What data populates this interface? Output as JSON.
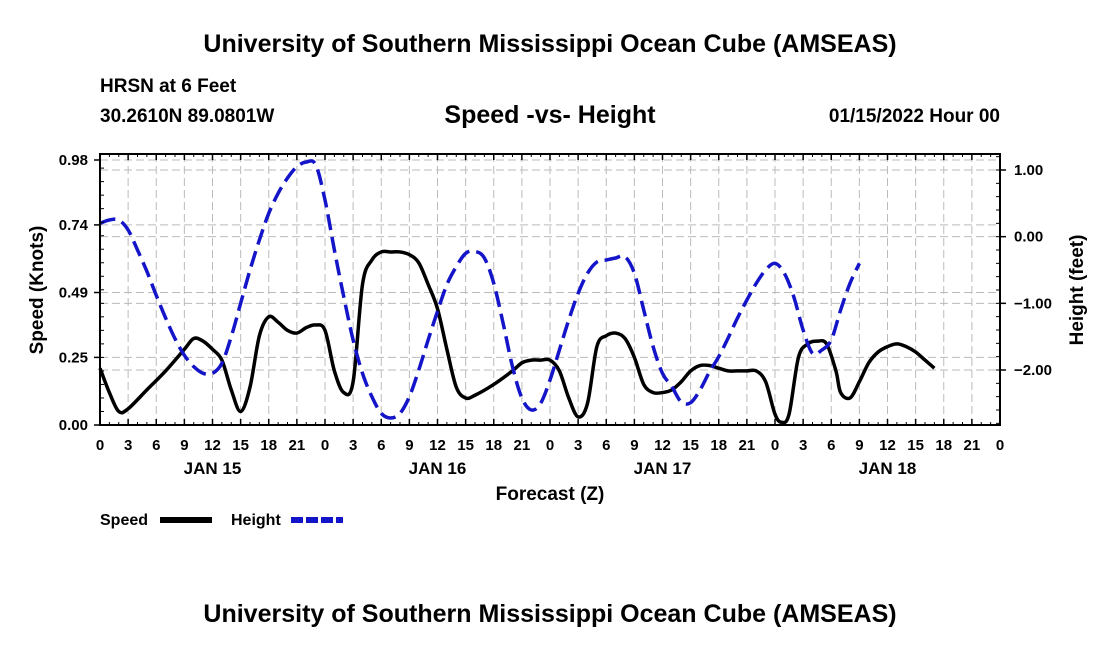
{
  "header": {
    "title": "University of Southern Mississippi Ocean Cube (AMSEAS)",
    "station_name": "HRSN at 6 Feet",
    "station_coords": "30.2610N  89.0801W",
    "subtitle": "Speed -vs- Height",
    "run_time": "01/15/2022 Hour 00"
  },
  "footer": {
    "title": "University of Southern Mississippi Ocean Cube (AMSEAS)"
  },
  "chart_data": {
    "type": "line",
    "title": "Speed -vs- Height",
    "xlabel": "Forecast (Z)",
    "ylabel": "Speed (Knots)",
    "y2label": "Height (feet)",
    "xlim": [
      0,
      96
    ],
    "ylim": [
      0,
      0.98
    ],
    "y2lim": [
      -2.8,
      1.2
    ],
    "x_ticks": [
      0,
      3,
      6,
      9,
      12,
      15,
      18,
      21,
      24,
      27,
      30,
      33,
      36,
      39,
      42,
      45,
      48,
      51,
      54,
      57,
      60,
      63,
      66,
      69,
      72,
      75,
      78,
      81,
      84,
      87,
      90,
      93,
      96
    ],
    "x_tick_labels": [
      "0",
      "3",
      "6",
      "9",
      "12",
      "15",
      "18",
      "21",
      "0",
      "3",
      "6",
      "9",
      "12",
      "15",
      "18",
      "21",
      "0",
      "3",
      "6",
      "9",
      "12",
      "15",
      "18",
      "21",
      "0",
      "3",
      "6",
      "9",
      "12",
      "15",
      "18",
      "21",
      "0"
    ],
    "day_labels": [
      {
        "x": 12,
        "label": "JAN 15"
      },
      {
        "x": 36,
        "label": "JAN 16"
      },
      {
        "x": 60,
        "label": "JAN 17"
      },
      {
        "x": 84,
        "label": "JAN 18"
      }
    ],
    "y_ticks": [
      0.0,
      0.25,
      0.49,
      0.74,
      0.98
    ],
    "y_tick_labels": [
      "0.00",
      "0.25",
      "0.49",
      "0.74",
      "0.98"
    ],
    "y2_ticks": [
      1.0,
      0.0,
      -1.0,
      -2.0
    ],
    "y2_tick_labels": [
      "1.00",
      "0.00",
      "−1.00",
      "−2.00"
    ],
    "grid": true,
    "series": [
      {
        "name": "Speed",
        "axis": "left",
        "color": "#000000",
        "dash": "solid",
        "points": [
          [
            0,
            0.21
          ],
          [
            1,
            0.12
          ],
          [
            2,
            0.05
          ],
          [
            3,
            0.06
          ],
          [
            5,
            0.13
          ],
          [
            7,
            0.2
          ],
          [
            9,
            0.28
          ],
          [
            10,
            0.32
          ],
          [
            11,
            0.31
          ],
          [
            12,
            0.28
          ],
          [
            13,
            0.24
          ],
          [
            14,
            0.13
          ],
          [
            15,
            0.05
          ],
          [
            16,
            0.14
          ],
          [
            17,
            0.33
          ],
          [
            18,
            0.4
          ],
          [
            19,
            0.38
          ],
          [
            20,
            0.35
          ],
          [
            21,
            0.34
          ],
          [
            22,
            0.36
          ],
          [
            23,
            0.37
          ],
          [
            24,
            0.35
          ],
          [
            25,
            0.2
          ],
          [
            26,
            0.12
          ],
          [
            27,
            0.16
          ],
          [
            28,
            0.52
          ],
          [
            29,
            0.61
          ],
          [
            30,
            0.64
          ],
          [
            31,
            0.64
          ],
          [
            32,
            0.64
          ],
          [
            33,
            0.63
          ],
          [
            34,
            0.6
          ],
          [
            35,
            0.52
          ],
          [
            36,
            0.43
          ],
          [
            37,
            0.28
          ],
          [
            38,
            0.14
          ],
          [
            39,
            0.1
          ],
          [
            40,
            0.11
          ],
          [
            42,
            0.15
          ],
          [
            44,
            0.2
          ],
          [
            45,
            0.23
          ],
          [
            46,
            0.24
          ],
          [
            47,
            0.24
          ],
          [
            48,
            0.24
          ],
          [
            49,
            0.2
          ],
          [
            50,
            0.1
          ],
          [
            51,
            0.03
          ],
          [
            52,
            0.08
          ],
          [
            53,
            0.29
          ],
          [
            54,
            0.33
          ],
          [
            55,
            0.34
          ],
          [
            56,
            0.32
          ],
          [
            57,
            0.25
          ],
          [
            58,
            0.15
          ],
          [
            59,
            0.12
          ],
          [
            60,
            0.12
          ],
          [
            61,
            0.13
          ],
          [
            62,
            0.16
          ],
          [
            63,
            0.2
          ],
          [
            64,
            0.22
          ],
          [
            65,
            0.22
          ],
          [
            66,
            0.21
          ],
          [
            67,
            0.2
          ],
          [
            68,
            0.2
          ],
          [
            69,
            0.2
          ],
          [
            70,
            0.2
          ],
          [
            71,
            0.16
          ],
          [
            72,
            0.04
          ],
          [
            72.7,
            0.01
          ],
          [
            73.5,
            0.04
          ],
          [
            74.5,
            0.25
          ],
          [
            75.5,
            0.3
          ],
          [
            76.5,
            0.31
          ],
          [
            77.5,
            0.3
          ],
          [
            78.5,
            0.2
          ],
          [
            79,
            0.12
          ],
          [
            80,
            0.1
          ],
          [
            81,
            0.16
          ],
          [
            82,
            0.23
          ],
          [
            83,
            0.27
          ],
          [
            84,
            0.29
          ],
          [
            85,
            0.3
          ],
          [
            86,
            0.29
          ],
          [
            87,
            0.27
          ],
          [
            88,
            0.24
          ],
          [
            89,
            0.21
          ]
        ]
      },
      {
        "name": "Height",
        "axis": "right",
        "color": "#1414c8",
        "dash": "dashed",
        "points": [
          [
            0,
            0.2
          ],
          [
            1,
            0.25
          ],
          [
            2,
            0.25
          ],
          [
            3,
            0.1
          ],
          [
            4,
            -0.2
          ],
          [
            5,
            -0.52
          ],
          [
            6,
            -0.88
          ],
          [
            7,
            -1.22
          ],
          [
            8,
            -1.53
          ],
          [
            9,
            -1.78
          ],
          [
            10,
            -1.95
          ],
          [
            11,
            -2.05
          ],
          [
            12,
            -2.05
          ],
          [
            13,
            -1.9
          ],
          [
            14,
            -1.5
          ],
          [
            15,
            -1.0
          ],
          [
            16,
            -0.5
          ],
          [
            17,
            -0.05
          ],
          [
            18,
            0.35
          ],
          [
            19,
            0.65
          ],
          [
            20,
            0.88
          ],
          [
            21,
            1.05
          ],
          [
            22,
            1.12
          ],
          [
            23,
            1.08
          ],
          [
            24,
            0.55
          ],
          [
            25,
            -0.2
          ],
          [
            26,
            -0.9
          ],
          [
            27,
            -1.55
          ],
          [
            28,
            -2.05
          ],
          [
            29,
            -2.4
          ],
          [
            30,
            -2.65
          ],
          [
            31,
            -2.72
          ],
          [
            32,
            -2.65
          ],
          [
            33,
            -2.4
          ],
          [
            34,
            -2.0
          ],
          [
            35,
            -1.55
          ],
          [
            36,
            -1.12
          ],
          [
            37,
            -0.72
          ],
          [
            38,
            -0.45
          ],
          [
            39,
            -0.25
          ],
          [
            40,
            -0.22
          ],
          [
            41,
            -0.32
          ],
          [
            42,
            -0.7
          ],
          [
            43,
            -1.3
          ],
          [
            44,
            -1.95
          ],
          [
            45,
            -2.42
          ],
          [
            46,
            -2.6
          ],
          [
            47,
            -2.5
          ],
          [
            48,
            -2.15
          ],
          [
            49,
            -1.7
          ],
          [
            50,
            -1.25
          ],
          [
            51,
            -0.85
          ],
          [
            52,
            -0.55
          ],
          [
            53,
            -0.38
          ],
          [
            54,
            -0.35
          ],
          [
            55,
            -0.32
          ],
          [
            56,
            -0.3
          ],
          [
            57,
            -0.55
          ],
          [
            58,
            -1.1
          ],
          [
            59,
            -1.65
          ],
          [
            60,
            -2.05
          ],
          [
            61,
            -2.25
          ],
          [
            62,
            -2.48
          ],
          [
            63,
            -2.49
          ],
          [
            64,
            -2.3
          ],
          [
            65,
            -2.03
          ],
          [
            66,
            -1.8
          ],
          [
            67,
            -1.52
          ],
          [
            68,
            -1.22
          ],
          [
            69,
            -0.95
          ],
          [
            70,
            -0.7
          ],
          [
            71,
            -0.5
          ],
          [
            72,
            -0.4
          ],
          [
            73,
            -0.55
          ],
          [
            74,
            -0.9
          ],
          [
            75,
            -1.4
          ],
          [
            76,
            -1.75
          ],
          [
            77,
            -1.7
          ],
          [
            78,
            -1.55
          ],
          [
            79,
            -1.1
          ],
          [
            80,
            -0.7
          ],
          [
            81,
            -0.4
          ]
        ]
      }
    ],
    "legend": {
      "placement": "bottom-left",
      "entries": [
        {
          "label": "Speed",
          "color": "#000000",
          "dash": "solid"
        },
        {
          "label": "Height",
          "color": "#1414c8",
          "dash": "dashed"
        }
      ]
    }
  }
}
